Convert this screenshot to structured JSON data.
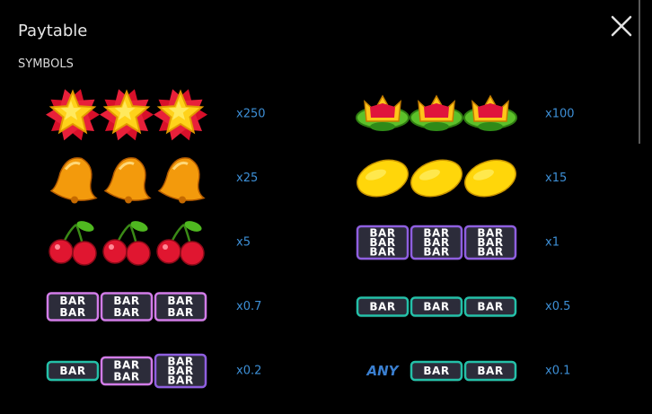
{
  "header": {
    "title": "Paytable"
  },
  "section": "SYMBOLS",
  "paytable": [
    {
      "payout": "x250"
    },
    {
      "payout": "x100"
    },
    {
      "payout": "x25"
    },
    {
      "payout": "x15"
    },
    {
      "payout": "x5"
    },
    {
      "bars": [
        [
          "BAR",
          "BAR",
          "BAR"
        ],
        [
          "BAR",
          "BAR",
          "BAR"
        ],
        [
          "BAR",
          "BAR",
          "BAR"
        ]
      ],
      "payout": "x1"
    },
    {
      "bars": [
        [
          "BAR",
          "BAR"
        ],
        [
          "BAR",
          "BAR"
        ],
        [
          "BAR",
          "BAR"
        ]
      ],
      "payout": "x0.7"
    },
    {
      "bars": [
        [
          "BAR"
        ],
        [
          "BAR"
        ],
        [
          "BAR"
        ]
      ],
      "payout": "x0.5"
    },
    {
      "bars": [
        [
          "BAR"
        ],
        [
          "BAR",
          "BAR"
        ],
        [
          "BAR",
          "BAR",
          "BAR"
        ]
      ],
      "payout": "x0.2"
    },
    {
      "bars": [
        [
          "ANY"
        ],
        [
          "BAR"
        ],
        [
          "BAR"
        ]
      ],
      "payout": "x0.1"
    }
  ]
}
